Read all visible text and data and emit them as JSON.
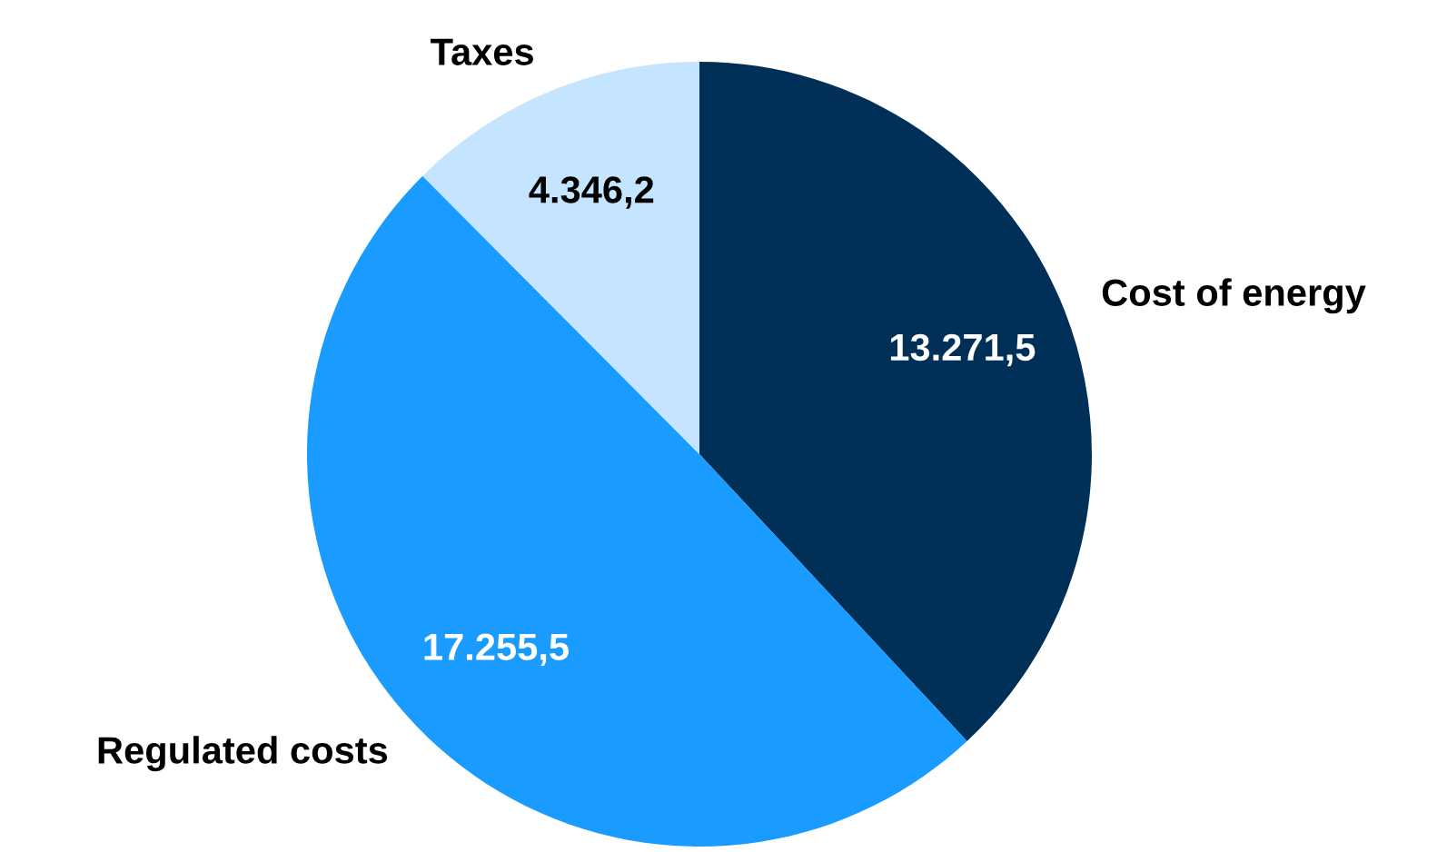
{
  "chart_data": {
    "type": "pie",
    "categories": [
      "Cost of energy",
      "Regulated costs",
      "Taxes"
    ],
    "values": [
      13271.5,
      17255.5,
      4346.2
    ],
    "value_labels": [
      "13.271,5",
      "17.255,5",
      "4.346,2"
    ],
    "colors": [
      "#003057",
      "#199bff",
      "#c5e4ff"
    ],
    "legend": false
  }
}
